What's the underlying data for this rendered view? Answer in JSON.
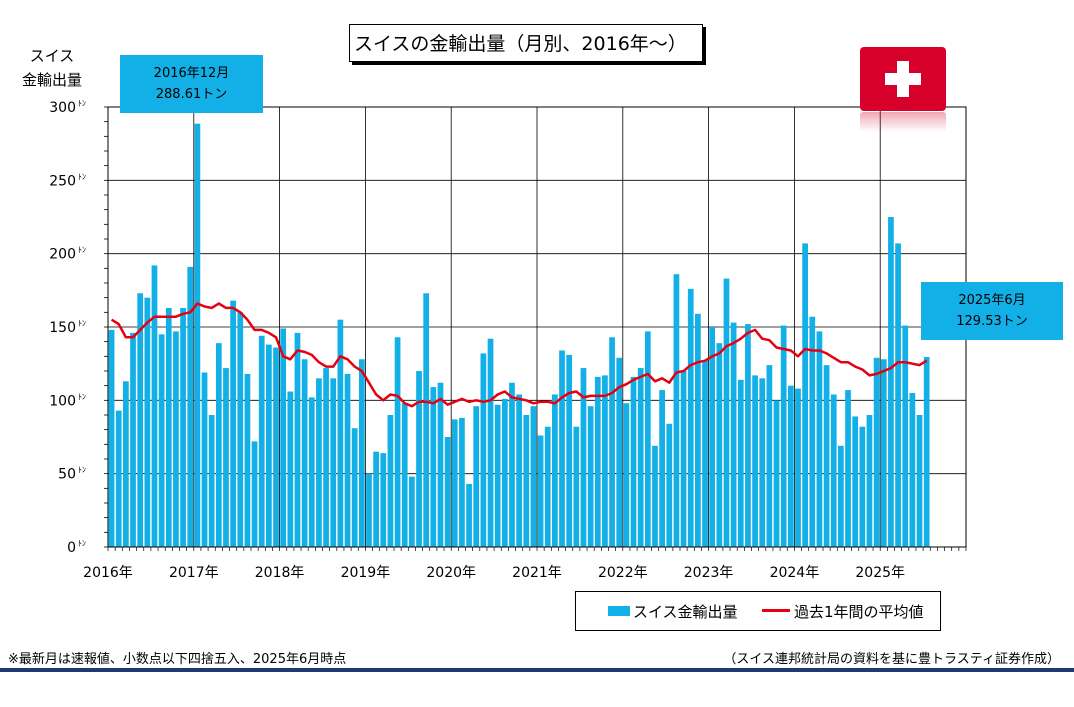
{
  "title": "スイスの金輸出量（月別、2016年～）",
  "y_axis_label_line1": "スイス",
  "y_axis_label_line2": "金輸出量",
  "callouts": {
    "peak": {
      "line1": "2016年12月",
      "line2": "288.61トン"
    },
    "latest": {
      "line1": "2025年6月",
      "line2": "129.53トン"
    }
  },
  "legend": {
    "bar": "スイス金輸出量",
    "line": "過去1年間の平均値"
  },
  "notes": {
    "left": "※最新月は速報値、小数点以下四捨五入、2025年6月時点",
    "right": "（スイス連邦統計局の資料を基に豊トラスティ証券作成）"
  },
  "flag_icon": "swiss-flag-icon",
  "colors": {
    "bar": "#12b0e6",
    "line": "#e60012",
    "callout": "#12b0e6",
    "flag": "#d6002a",
    "rule": "#1f3a6e"
  },
  "chart_data": {
    "type": "bar",
    "y_tick_suffix": "ﾄﾝ",
    "ylim": [
      0,
      300
    ],
    "yticks": [
      0,
      50,
      100,
      150,
      200,
      250,
      300
    ],
    "x_labels": [
      "2016年",
      "2017年",
      "2018年",
      "2019年",
      "2020年",
      "2021年",
      "2022年",
      "2023年",
      "2024年",
      "2025年"
    ],
    "grid": true,
    "series": [
      {
        "name": "スイス金輸出量",
        "type": "bar",
        "values": [
          148,
          93,
          113,
          146,
          173,
          170,
          192,
          145,
          163,
          147,
          163,
          191,
          288.61,
          119,
          90,
          139,
          122,
          168,
          160,
          118,
          72,
          144,
          138,
          136,
          149,
          106,
          146,
          128,
          102,
          115,
          122,
          115,
          155,
          118,
          81,
          128,
          50,
          65,
          64,
          90,
          143,
          98,
          48,
          120,
          173,
          109,
          112,
          75,
          87,
          88,
          43,
          96,
          132,
          142,
          97,
          101,
          112,
          104,
          90,
          96,
          76,
          82,
          104,
          134,
          131,
          82,
          122,
          96,
          116,
          117,
          143,
          129,
          98,
          116,
          122,
          147,
          69,
          107,
          84,
          186,
          120,
          176,
          159,
          127,
          150,
          139,
          183,
          153,
          114,
          152,
          117,
          115,
          124,
          100,
          151,
          110,
          108,
          207,
          157,
          147,
          124,
          104,
          69,
          107,
          89,
          82,
          90,
          129,
          128,
          225,
          207,
          151,
          105,
          90,
          129.53
        ]
      },
      {
        "name": "過去1年間の平均値",
        "type": "line",
        "values": [
          155,
          152,
          143,
          143,
          148,
          153,
          157,
          157,
          157,
          157,
          159,
          160,
          166,
          164,
          163,
          166,
          163,
          163,
          160,
          155,
          148,
          148,
          146,
          143,
          130,
          128,
          134,
          133,
          131,
          126,
          123,
          123,
          130,
          128,
          123,
          120,
          112,
          104,
          100,
          104,
          103,
          98,
          96,
          99,
          99,
          98,
          101,
          97,
          99,
          101,
          99,
          100,
          99,
          100,
          104,
          106,
          102,
          101,
          100,
          98,
          99,
          99,
          98,
          102,
          105,
          106,
          102,
          103,
          103,
          103,
          105,
          109,
          111,
          114,
          116,
          118,
          113,
          115,
          112,
          119,
          120,
          124,
          126,
          127,
          130,
          132,
          137,
          139,
          142,
          146,
          148,
          142,
          141,
          136,
          135,
          134,
          130,
          135,
          134,
          134,
          132,
          129,
          126,
          126,
          123,
          121,
          117,
          118,
          120,
          122,
          126,
          126,
          125,
          124,
          127
        ]
      }
    ]
  }
}
